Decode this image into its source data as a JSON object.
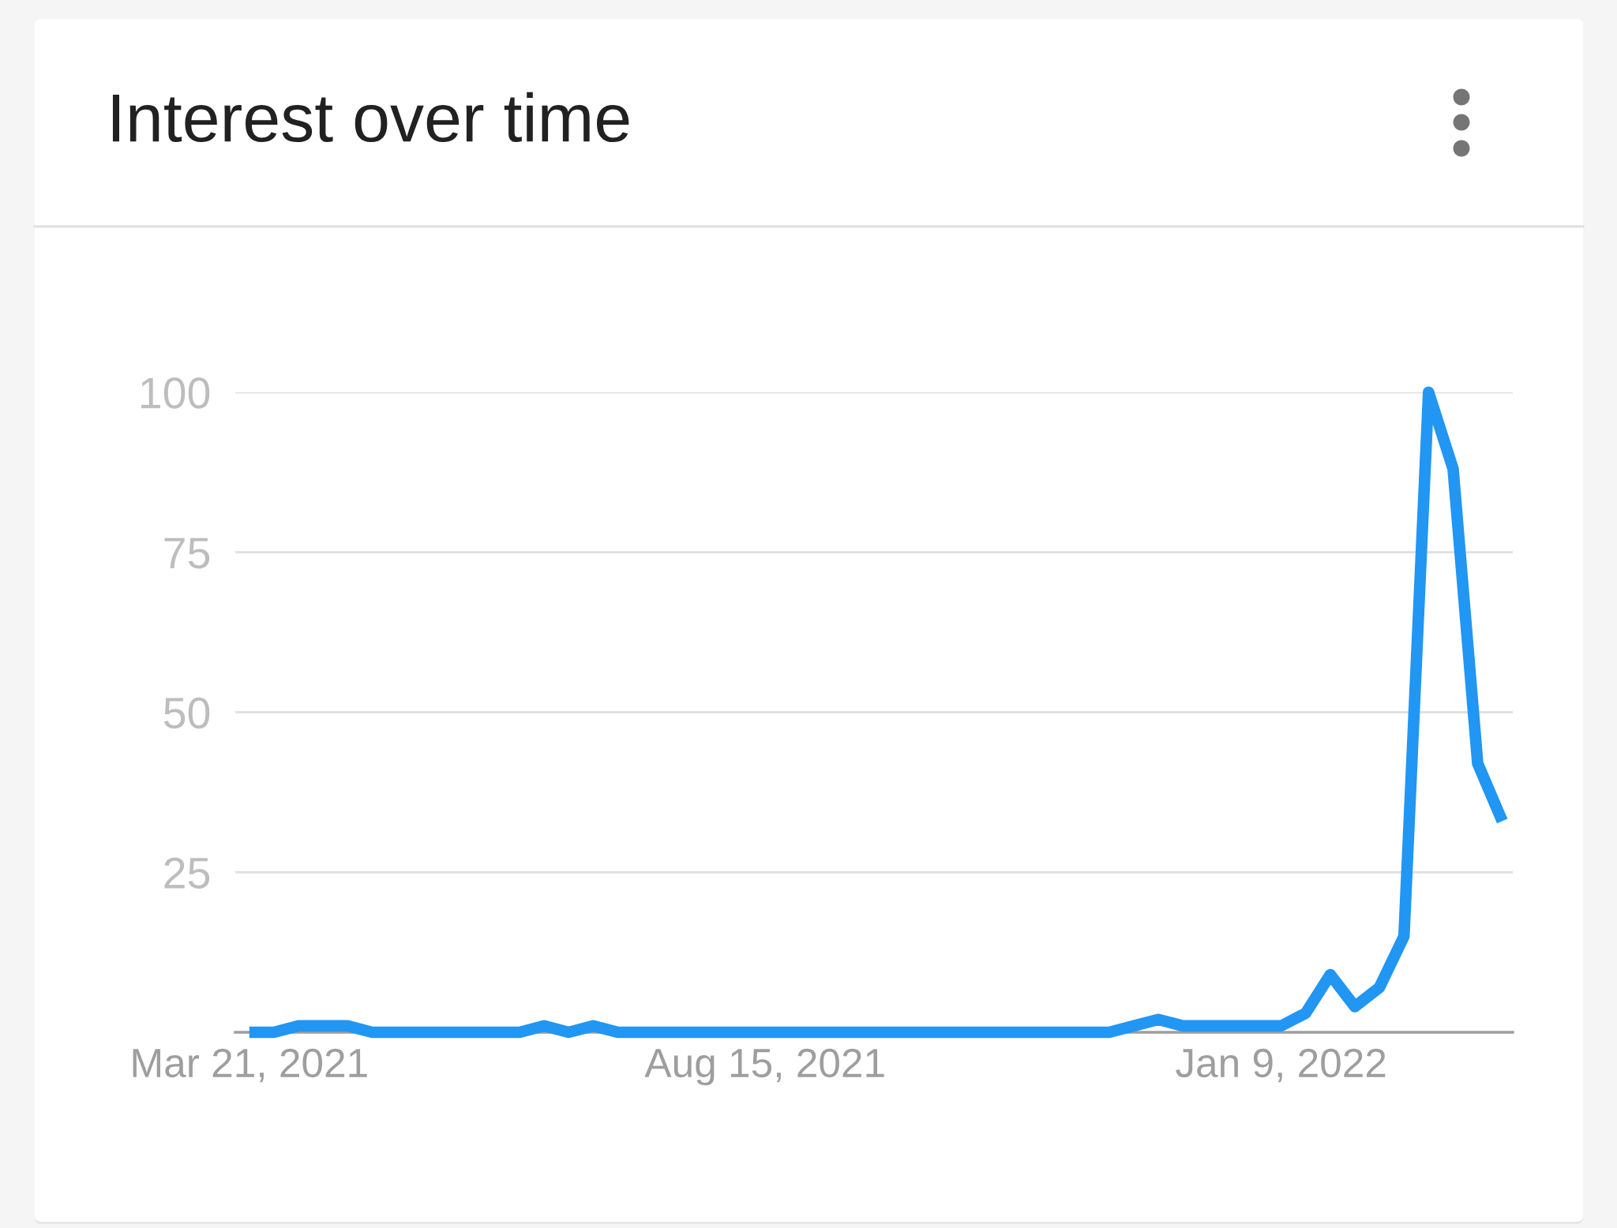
{
  "chart_data": {
    "type": "line",
    "title": "Interest over time",
    "x": [
      "2021-03-21",
      "2021-03-28",
      "2021-04-04",
      "2021-04-11",
      "2021-04-18",
      "2021-04-25",
      "2021-05-02",
      "2021-05-09",
      "2021-05-16",
      "2021-05-23",
      "2021-05-30",
      "2021-06-06",
      "2021-06-13",
      "2021-06-20",
      "2021-06-27",
      "2021-07-04",
      "2021-07-11",
      "2021-07-18",
      "2021-07-25",
      "2021-08-01",
      "2021-08-08",
      "2021-08-15",
      "2021-08-22",
      "2021-08-29",
      "2021-09-05",
      "2021-09-12",
      "2021-09-19",
      "2021-09-26",
      "2021-10-03",
      "2021-10-10",
      "2021-10-17",
      "2021-10-24",
      "2021-10-31",
      "2021-11-07",
      "2021-11-14",
      "2021-11-21",
      "2021-11-28",
      "2021-12-05",
      "2021-12-12",
      "2021-12-19",
      "2021-12-26",
      "2022-01-02",
      "2022-01-09",
      "2022-01-16",
      "2022-01-23",
      "2022-01-30",
      "2022-02-06",
      "2022-02-13",
      "2022-02-20",
      "2022-02-27",
      "2022-03-06",
      "2022-03-13"
    ],
    "series": [
      {
        "color": "#2196f3",
        "values": [
          0,
          0,
          1,
          1,
          1,
          0,
          0,
          0,
          0,
          0,
          0,
          0,
          1,
          0,
          1,
          0,
          0,
          0,
          0,
          0,
          0,
          0,
          0,
          0,
          0,
          0,
          0,
          0,
          0,
          0,
          0,
          0,
          0,
          0,
          0,
          0,
          1,
          2,
          1,
          1,
          1,
          1,
          1,
          3,
          9,
          4,
          7,
          15,
          100,
          88,
          42,
          33
        ]
      }
    ],
    "xlim": [
      "2021-03-17",
      "2022-03-16"
    ],
    "xticks": [
      {
        "value": "2021-03-21",
        "label": "Mar 21, 2021"
      },
      {
        "value": "2021-08-15",
        "label": "Aug 15, 2021"
      },
      {
        "value": "2022-01-09",
        "label": "Jan 9, 2022"
      }
    ],
    "ylim": [
      0,
      100
    ],
    "yticks": [
      25,
      50,
      75,
      100
    ],
    "grid": "y",
    "marker": "none",
    "line_style": "solid"
  }
}
